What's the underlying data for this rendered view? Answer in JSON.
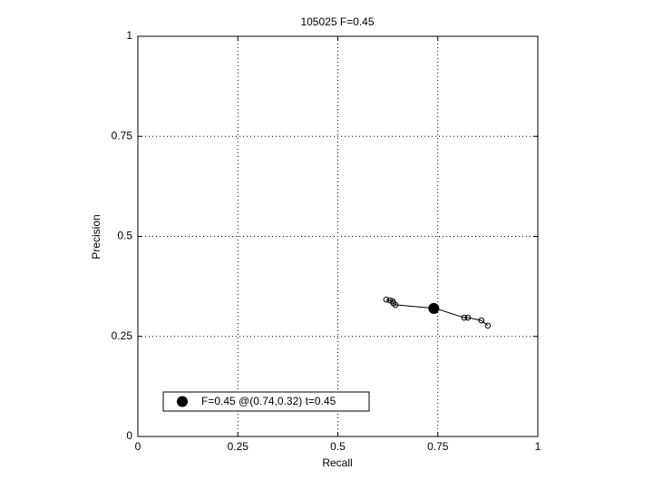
{
  "chart_data": {
    "type": "line",
    "title": "105025 F=0.45",
    "x_label": "Recall",
    "y_label": "Precision",
    "x": [
      0.621,
      0.63,
      0.637,
      0.639,
      0.644,
      0.744,
      0.816,
      0.825,
      0.859,
      0.875
    ],
    "values": [
      0.342,
      0.34,
      0.338,
      0.333,
      0.329,
      0.32,
      0.297,
      0.297,
      0.29,
      0.277
    ],
    "color": "#000000",
    "best": {
      "name": "F=0.45 @(0.74,0.32) t=0.45",
      "x": 0.74,
      "y": 0.32
    },
    "xlim": [
      0,
      1
    ],
    "ylim": [
      0,
      1
    ],
    "xticks": [
      0,
      0.25,
      0.5,
      0.75,
      1
    ],
    "yticks": [
      0,
      0.25,
      0.5,
      0.75,
      1
    ],
    "grid": true,
    "legend": "lower-left"
  }
}
